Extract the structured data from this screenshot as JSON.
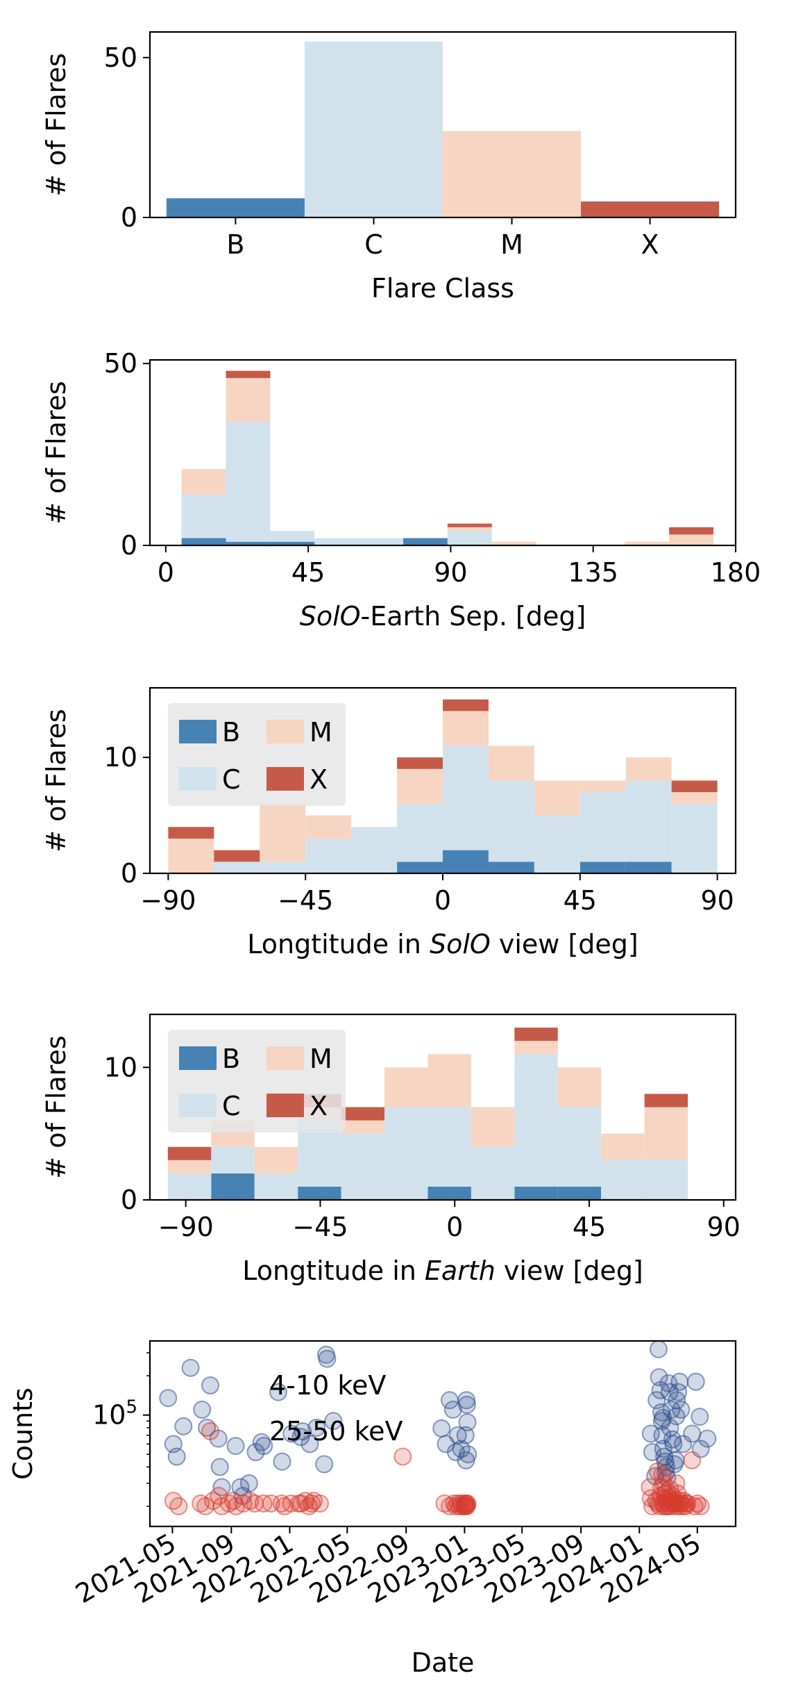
{
  "colors": {
    "B": "#4682b4",
    "C": "#d1e2ed",
    "M": "#f6d5c2",
    "X": "#c65a48",
    "low_energy": "#2e4f8e",
    "high_energy": "#d63a2f"
  },
  "chart_data": [
    {
      "type": "bar",
      "categories": [
        "B",
        "C",
        "M",
        "X"
      ],
      "values": [
        6,
        55,
        27,
        5
      ],
      "xlabel": "Flare Class",
      "ylabel": "# of Flares",
      "ylim": [
        0,
        58
      ],
      "yticks": [
        0,
        50
      ]
    },
    {
      "type": "bar",
      "stacked": true,
      "xlabel_parts": [
        {
          "text": "SolO",
          "italic": true
        },
        {
          "text": "-Earth Sep. [deg]",
          "italic": false
        }
      ],
      "ylabel": "# of Flares",
      "xlim": [
        -5,
        180
      ],
      "ylim": [
        0,
        51
      ],
      "xticks": [
        0,
        45,
        90,
        135,
        180
      ],
      "yticks": [
        0,
        50
      ],
      "bin_edges": [
        5,
        19,
        33,
        47,
        61,
        75,
        89,
        103,
        117,
        131,
        145,
        159,
        173
      ],
      "series": [
        {
          "name": "B",
          "values": [
            2,
            1,
            1,
            0,
            0,
            2,
            0,
            0,
            0,
            0,
            0,
            0
          ]
        },
        {
          "name": "C",
          "values": [
            12,
            33,
            3,
            2,
            2,
            0,
            4,
            0,
            0,
            0,
            0,
            0
          ]
        },
        {
          "name": "M",
          "values": [
            7,
            12,
            0,
            0,
            0,
            0,
            1,
            1,
            0,
            0,
            1,
            3
          ]
        },
        {
          "name": "X",
          "values": [
            0,
            2,
            0,
            0,
            0,
            0,
            1,
            0,
            0,
            0,
            0,
            2
          ]
        }
      ]
    },
    {
      "type": "bar",
      "stacked": true,
      "xlabel_parts": [
        {
          "text": "Longtitude in ",
          "italic": false
        },
        {
          "text": "SolO",
          "italic": true
        },
        {
          "text": " view [deg]",
          "italic": false
        }
      ],
      "ylabel": "# of Flares",
      "xlim": [
        -96,
        96
      ],
      "ylim": [
        0,
        16
      ],
      "xticks": [
        -90,
        -45,
        0,
        45,
        90
      ],
      "yticks": [
        0,
        10
      ],
      "legend": {
        "placement": "top-left",
        "columns": 2,
        "entries": [
          "B",
          "M",
          "C",
          "X"
        ]
      },
      "bin_edges": [
        -90,
        -75,
        -60,
        -45,
        -30,
        -15,
        0,
        15,
        30,
        45,
        60,
        75,
        90
      ],
      "series": [
        {
          "name": "B",
          "values": [
            0,
            0,
            0,
            0,
            0,
            1,
            2,
            1,
            0,
            1,
            1,
            0
          ]
        },
        {
          "name": "C",
          "values": [
            0,
            1,
            1,
            3,
            4,
            5,
            9,
            7,
            5,
            6,
            7,
            6
          ]
        },
        {
          "name": "M",
          "values": [
            3,
            0,
            5,
            2,
            0,
            3,
            3,
            3,
            3,
            1,
            2,
            1
          ]
        },
        {
          "name": "X",
          "values": [
            1,
            1,
            0,
            0,
            0,
            1,
            1,
            0,
            0,
            0,
            0,
            1
          ]
        }
      ]
    },
    {
      "type": "bar",
      "stacked": true,
      "xlabel_parts": [
        {
          "text": "Longtitude in ",
          "italic": false
        },
        {
          "text": "Earth",
          "italic": true
        },
        {
          "text": " view [deg]",
          "italic": false
        }
      ],
      "ylabel": "# of Flares",
      "xlim": [
        -102,
        94
      ],
      "ylim": [
        0,
        14
      ],
      "xticks": [
        -90,
        -45,
        0,
        45,
        90
      ],
      "yticks": [
        0,
        10
      ],
      "legend": {
        "placement": "top-left",
        "columns": 2,
        "entries": [
          "B",
          "M",
          "C",
          "X"
        ]
      },
      "bin_edges": [
        -96,
        -81.5,
        -67,
        -52.5,
        -38,
        -23.5,
        -9,
        5.5,
        20,
        34.5,
        49,
        63.5,
        78,
        92.5
      ],
      "series": [
        {
          "name": "B",
          "values": [
            0,
            2,
            0,
            1,
            0,
            0,
            1,
            0,
            1,
            1,
            0,
            0,
            0
          ]
        },
        {
          "name": "C",
          "values": [
            2,
            2,
            2,
            5,
            5,
            7,
            6,
            4,
            10,
            6,
            3,
            3,
            0
          ]
        },
        {
          "name": "M",
          "values": [
            1,
            2,
            2,
            1,
            1,
            3,
            4,
            3,
            1,
            3,
            2,
            4,
            0
          ]
        },
        {
          "name": "X",
          "values": [
            1,
            0,
            0,
            1,
            1,
            0,
            0,
            0,
            1,
            0,
            0,
            1,
            0
          ]
        }
      ]
    },
    {
      "type": "scatter",
      "xlabel": "Date",
      "ylabel": "Counts",
      "yscale": "log",
      "xlim": [
        "2021-03-15",
        "2024-07-20"
      ],
      "ylim": [
        14000,
        370000
      ],
      "ytick_label": {
        "base": "10",
        "exp": "5",
        "value": 100000
      },
      "xtick_labels": [
        "2021-05",
        "2021-09",
        "2022-01",
        "2022-05",
        "2022-09",
        "2023-01",
        "2023-05",
        "2023-09",
        "2024-01",
        "2024-05"
      ],
      "xtick_dates": [
        "2021-05-01",
        "2021-09-01",
        "2022-01-01",
        "2022-05-01",
        "2022-09-01",
        "2023-01-01",
        "2023-05-01",
        "2023-09-01",
        "2024-01-01",
        "2024-05-01"
      ],
      "legend": {
        "placement": "top-left"
      },
      "series": [
        {
          "name": "4-10 keV",
          "points": [
            [
              "2021-04-22",
              135000
            ],
            [
              "2021-05-03",
              60000
            ],
            [
              "2021-05-10",
              48000
            ],
            [
              "2021-05-24",
              82000
            ],
            [
              "2021-06-08",
              230000
            ],
            [
              "2021-07-02",
              110000
            ],
            [
              "2021-07-12",
              80000
            ],
            [
              "2021-08-05",
              66000
            ],
            [
              "2021-08-08",
              40000
            ],
            [
              "2021-08-12",
              28000
            ],
            [
              "2021-09-10",
              58000
            ],
            [
              "2021-09-20",
              28000
            ],
            [
              "2021-09-25",
              24000
            ],
            [
              "2021-10-08",
              30000
            ],
            [
              "2021-10-22",
              52000
            ],
            [
              "2021-11-03",
              62000
            ],
            [
              "2021-11-08",
              58000
            ],
            [
              "2021-12-08",
              150000
            ],
            [
              "2021-12-16",
              44000
            ],
            [
              "2022-01-05",
              72000
            ],
            [
              "2022-01-24",
              68000
            ],
            [
              "2022-01-28",
              75000
            ],
            [
              "2022-02-12",
              60000
            ],
            [
              "2022-02-26",
              80000
            ],
            [
              "2022-03-14",
              42000
            ],
            [
              "2022-03-18",
              290000
            ],
            [
              "2022-03-20",
              270000
            ],
            [
              "2022-04-02",
              90000
            ],
            [
              "2022-11-14",
              79000
            ],
            [
              "2022-11-23",
              60000
            ],
            [
              "2022-12-01",
              130000
            ],
            [
              "2022-12-08",
              110000
            ],
            [
              "2022-12-14",
              52000
            ],
            [
              "2022-12-18",
              70000
            ],
            [
              "2022-12-25",
              55000
            ],
            [
              "2023-01-03",
              70000
            ],
            [
              "2023-01-04",
              45000
            ],
            [
              "2023-01-05",
              130000
            ],
            [
              "2023-01-06",
              120000
            ],
            [
              "2023-01-07",
              88000
            ],
            [
              "2023-01-08",
              50000
            ],
            [
              "2024-01-25",
              72000
            ],
            [
              "2024-01-28",
              52000
            ],
            [
              "2024-02-03",
              34000
            ],
            [
              "2024-02-06",
              130000
            ],
            [
              "2024-02-10",
              320000
            ],
            [
              "2024-02-11",
              195000
            ],
            [
              "2024-02-14",
              155000
            ],
            [
              "2024-02-16",
              105000
            ],
            [
              "2024-02-17",
              90000
            ],
            [
              "2024-02-18",
              70000
            ],
            [
              "2024-02-19",
              95000
            ],
            [
              "2024-02-20",
              55000
            ],
            [
              "2024-02-22",
              48000
            ],
            [
              "2024-02-24",
              44000
            ],
            [
              "2024-02-25",
              36000
            ],
            [
              "2024-02-26",
              40000
            ],
            [
              "2024-02-28",
              33000
            ],
            [
              "2024-03-02",
              175000
            ],
            [
              "2024-03-04",
              150000
            ],
            [
              "2024-03-05",
              80000
            ],
            [
              "2024-03-08",
              110000
            ],
            [
              "2024-03-10",
              65000
            ],
            [
              "2024-03-12",
              60000
            ],
            [
              "2024-03-14",
              42000
            ],
            [
              "2024-03-17",
              45000
            ],
            [
              "2024-03-18",
              98000
            ],
            [
              "2024-03-19",
              130000
            ],
            [
              "2024-03-22",
              150000
            ],
            [
              "2024-03-25",
              180000
            ],
            [
              "2024-03-28",
              110000
            ],
            [
              "2024-04-01",
              60000
            ],
            [
              "2024-04-20",
              72000
            ],
            [
              "2024-04-28",
              180000
            ],
            [
              "2024-05-06",
              97000
            ],
            [
              "2024-05-08",
              55000
            ],
            [
              "2024-05-22",
              66000
            ]
          ]
        },
        {
          "name": "25-50 keV",
          "points": [
            [
              "2021-05-03",
              22000
            ],
            [
              "2021-05-14",
              20000
            ],
            [
              "2021-06-29",
              21000
            ],
            [
              "2021-07-09",
              20000
            ],
            [
              "2021-07-25",
              22000
            ],
            [
              "2021-08-06",
              24000
            ],
            [
              "2021-08-12",
              20000
            ],
            [
              "2021-08-27",
              21000
            ],
            [
              "2021-09-05",
              22000
            ],
            [
              "2021-09-11",
              20000
            ],
            [
              "2021-09-26",
              21000
            ],
            [
              "2021-10-10",
              22000
            ],
            [
              "2021-10-20",
              21000
            ],
            [
              "2021-11-07",
              21000
            ],
            [
              "2021-11-23",
              21000
            ],
            [
              "2021-12-15",
              21000
            ],
            [
              "2021-12-21",
              20000
            ],
            [
              "2022-01-04",
              21000
            ],
            [
              "2022-01-20",
              21000
            ],
            [
              "2022-01-25",
              21000
            ],
            [
              "2022-02-03",
              22000
            ],
            [
              "2022-02-10",
              20000
            ],
            [
              "2022-02-16",
              21000
            ],
            [
              "2022-02-20",
              22000
            ],
            [
              "2022-03-05",
              21000
            ],
            [
              "2022-08-25",
              48000
            ],
            [
              "2022-11-20",
              21000
            ],
            [
              "2022-12-01",
              20000
            ],
            [
              "2022-12-10",
              21000
            ],
            [
              "2022-12-14",
              20000
            ],
            [
              "2022-12-18",
              21000
            ],
            [
              "2022-12-22",
              20000
            ],
            [
              "2022-12-25",
              21000
            ],
            [
              "2022-12-28",
              20000
            ],
            [
              "2023-01-01",
              20000
            ],
            [
              "2023-01-02",
              21000
            ],
            [
              "2023-01-03",
              20000
            ],
            [
              "2023-01-04",
              21000
            ],
            [
              "2023-01-05",
              20500
            ],
            [
              "2023-01-06",
              20000
            ],
            [
              "2023-01-07",
              21000
            ],
            [
              "2024-01-23",
              28000
            ],
            [
              "2024-01-25",
              23000
            ],
            [
              "2024-01-28",
              20000
            ],
            [
              "2024-02-05",
              22000
            ],
            [
              "2024-02-08",
              37000
            ],
            [
              "2024-02-09",
              21000
            ],
            [
              "2024-02-12",
              20000
            ],
            [
              "2024-02-14",
              24000
            ],
            [
              "2024-02-16",
              28000
            ],
            [
              "2024-02-18",
              35000
            ],
            [
              "2024-02-19",
              21000
            ],
            [
              "2024-02-20",
              30000
            ],
            [
              "2024-02-22",
              20000
            ],
            [
              "2024-02-23",
              23000
            ],
            [
              "2024-02-24",
              25000
            ],
            [
              "2024-02-25",
              20000
            ],
            [
              "2024-02-27",
              22000
            ],
            [
              "2024-02-28",
              26000
            ],
            [
              "2024-03-01",
              20000
            ],
            [
              "2024-03-02",
              21000
            ],
            [
              "2024-03-03",
              23000
            ],
            [
              "2024-03-05",
              27000
            ],
            [
              "2024-03-07",
              20000
            ],
            [
              "2024-03-08",
              22000
            ],
            [
              "2024-03-10",
              24000
            ],
            [
              "2024-03-12",
              21000
            ],
            [
              "2024-03-14",
              21000
            ],
            [
              "2024-03-15",
              22000
            ],
            [
              "2024-03-17",
              20000
            ],
            [
              "2024-03-18",
              30000
            ],
            [
              "2024-03-20",
              21000
            ],
            [
              "2024-03-21",
              25000
            ],
            [
              "2024-03-24",
              20000
            ],
            [
              "2024-03-25",
              22000
            ],
            [
              "2024-03-28",
              21000
            ],
            [
              "2024-04-01",
              20000
            ],
            [
              "2024-04-03",
              22000
            ],
            [
              "2024-04-06",
              21000
            ],
            [
              "2024-04-07",
              20000
            ],
            [
              "2024-04-10",
              21000
            ],
            [
              "2024-04-20",
              45000
            ],
            [
              "2024-04-25",
              20000
            ],
            [
              "2024-05-01",
              21000
            ],
            [
              "2024-05-08",
              20000
            ]
          ]
        }
      ]
    }
  ]
}
